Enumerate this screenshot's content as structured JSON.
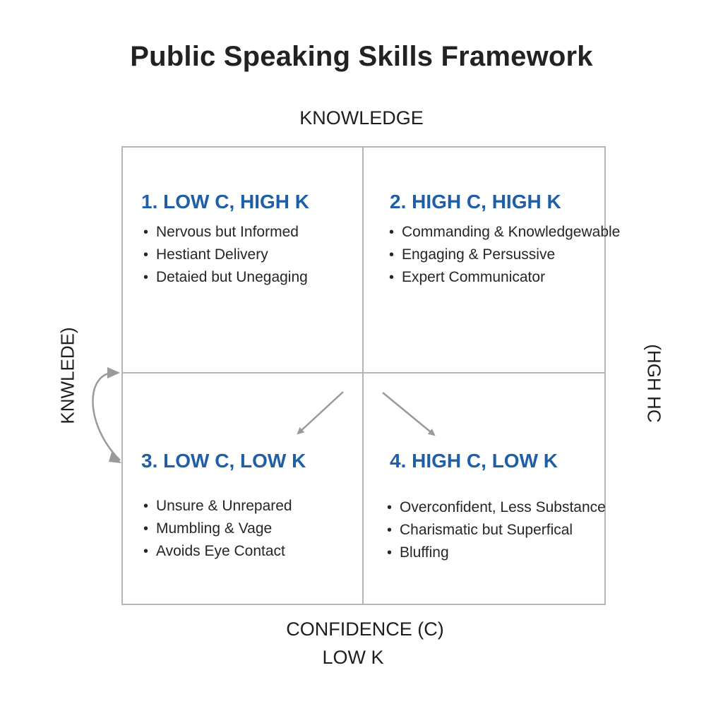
{
  "title": "Public Speaking Skills Framework",
  "axes": {
    "top": "KNOWLEDGE",
    "bottom_line1": "CONFIDENCE (C)",
    "bottom_line2": "LOW K",
    "left": "KNWLEDE)",
    "right": "(HGH HC"
  },
  "quadrants": [
    {
      "title": "1. LOW C, HIGH K",
      "items": [
        "Nervous but Informed",
        "Hestiant Delivery",
        "Detaied but Unegaging"
      ]
    },
    {
      "title": "2. HIGH C, HIGH K",
      "items": [
        "Commanding & Knowledgewable",
        "Engaging & Persussive",
        "Expert Communicator"
      ]
    },
    {
      "title": "3. LOW C, LOW K",
      "items": [
        "Unsure & Unrepared",
        "Mumbling & Vage",
        "Avoids Eye Contact"
      ]
    },
    {
      "title": "4. HIGH C, LOW K",
      "items": [
        "Overconfident, Less Substance",
        "Charismatic but Superfical",
        "Bluffing"
      ]
    }
  ],
  "colors": {
    "quadrant_title": "#1f5fa8",
    "grid_line": "#b5b5b5",
    "arrow": "#9a9a9a"
  }
}
